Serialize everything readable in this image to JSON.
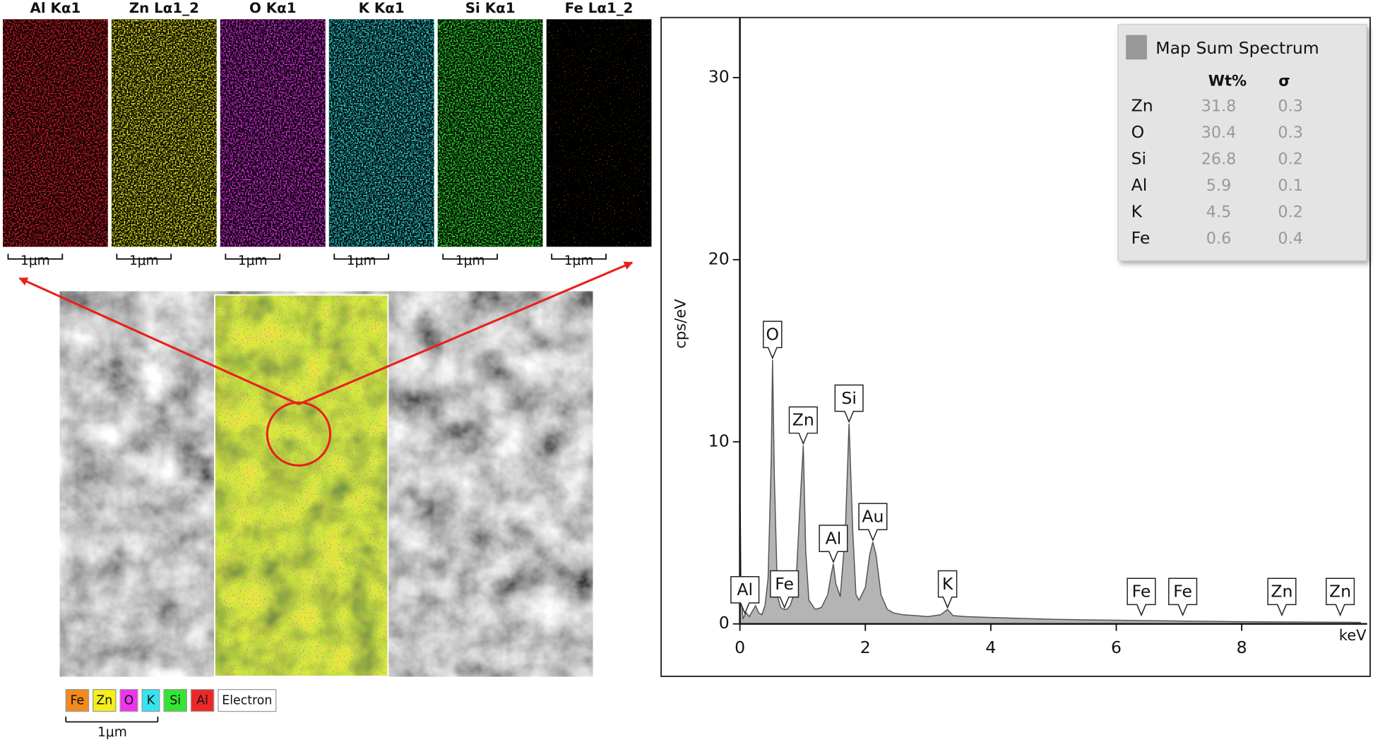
{
  "maps": [
    {
      "label": "Al Kα1",
      "color": "#e0202a",
      "scale": "1μm"
    },
    {
      "label": "Zn Lα1_2",
      "color": "#f2f020",
      "scale": "1μm"
    },
    {
      "label": "O Kα1",
      "color": "#e030e8",
      "scale": "1μm"
    },
    {
      "label": "K Kα1",
      "color": "#30e0e8",
      "scale": "1μm"
    },
    {
      "label": "Si Kα1",
      "color": "#30e830",
      "scale": "1μm"
    },
    {
      "label": "Fe Lα1_2",
      "color": "#f08a20",
      "scale": "1μm"
    }
  ],
  "overlay_legend": [
    {
      "label": "Fe",
      "color": "#f28a1e"
    },
    {
      "label": "Zn",
      "color": "#f4ee1c"
    },
    {
      "label": "O",
      "color": "#ee34ee"
    },
    {
      "label": "K",
      "color": "#34e4ee"
    },
    {
      "label": "Si",
      "color": "#34e434"
    },
    {
      "label": "Al",
      "color": "#ee2828"
    },
    {
      "label": "Electron",
      "color": "#ffffff"
    }
  ],
  "overlay_scale": "1μm",
  "chart_data": {
    "type": "area",
    "color": "#b4b4b4",
    "x_label": "keV",
    "y_label": "cps/eV",
    "xlim": [
      0,
      10
    ],
    "ylim": [
      0,
      33.3
    ],
    "xticks": [
      0,
      2,
      4,
      6,
      8
    ],
    "yticks": [
      0,
      10,
      20,
      30
    ],
    "x": [
      0,
      0.02,
      0.05,
      0.1,
      0.15,
      0.2,
      0.25,
      0.3,
      0.35,
      0.4,
      0.45,
      0.5,
      0.52,
      0.55,
      0.6,
      0.65,
      0.7,
      0.75,
      0.8,
      0.85,
      0.9,
      0.95,
      1.01,
      1.05,
      1.1,
      1.2,
      1.3,
      1.4,
      1.45,
      1.49,
      1.53,
      1.6,
      1.68,
      1.74,
      1.8,
      1.85,
      1.9,
      2.0,
      2.07,
      2.12,
      2.17,
      2.25,
      2.35,
      2.45,
      2.6,
      2.8,
      3.0,
      3.2,
      3.31,
      3.4,
      3.6,
      4.0,
      4.5,
      5.0,
      5.5,
      6.0,
      6.5,
      7.0,
      7.5,
      8.0,
      8.5,
      9.0,
      9.5,
      9.9
    ],
    "values": [
      8.3,
      1.5,
      0.3,
      0.6,
      0.4,
      0.7,
      1.0,
      0.6,
      0.5,
      1.0,
      2.5,
      9,
      14.5,
      8,
      1.5,
      0.9,
      0.8,
      0.8,
      1.0,
      1.5,
      2.6,
      6,
      9.8,
      4,
      1.3,
      0.8,
      0.9,
      1.6,
      2.6,
      3.3,
      2.2,
      1.5,
      5,
      11,
      5,
      1.6,
      1.3,
      2.0,
      3.8,
      4.5,
      3.8,
      1.6,
      0.8,
      0.6,
      0.5,
      0.45,
      0.4,
      0.5,
      0.8,
      0.45,
      0.4,
      0.35,
      0.3,
      0.25,
      0.22,
      0.2,
      0.18,
      0.16,
      0.14,
      0.12,
      0.11,
      0.1,
      0.09,
      0.08
    ],
    "peak_labels": [
      {
        "label": "Al",
        "x": 0.08
      },
      {
        "label": "O",
        "x": 0.52
      },
      {
        "label": "Fe",
        "x": 0.71
      },
      {
        "label": "Zn",
        "x": 1.01
      },
      {
        "label": "Al",
        "x": 1.49
      },
      {
        "label": "Si",
        "x": 1.74
      },
      {
        "label": "Au",
        "x": 2.12
      },
      {
        "label": "K",
        "x": 3.31
      },
      {
        "label": "Fe",
        "x": 6.4
      },
      {
        "label": "Fe",
        "x": 7.06
      },
      {
        "label": "Zn",
        "x": 8.64
      },
      {
        "label": "Zn",
        "x": 9.57
      }
    ],
    "results": {
      "title": "Map Sum Spectrum",
      "columns": [
        "Wt%",
        "σ"
      ],
      "rows": [
        [
          "Zn",
          31.8,
          0.3
        ],
        [
          "O",
          30.4,
          0.3
        ],
        [
          "Si",
          26.8,
          0.2
        ],
        [
          "Al",
          5.9,
          0.1
        ],
        [
          "K",
          4.5,
          0.2
        ],
        [
          "Fe",
          0.6,
          0.4
        ]
      ]
    }
  }
}
